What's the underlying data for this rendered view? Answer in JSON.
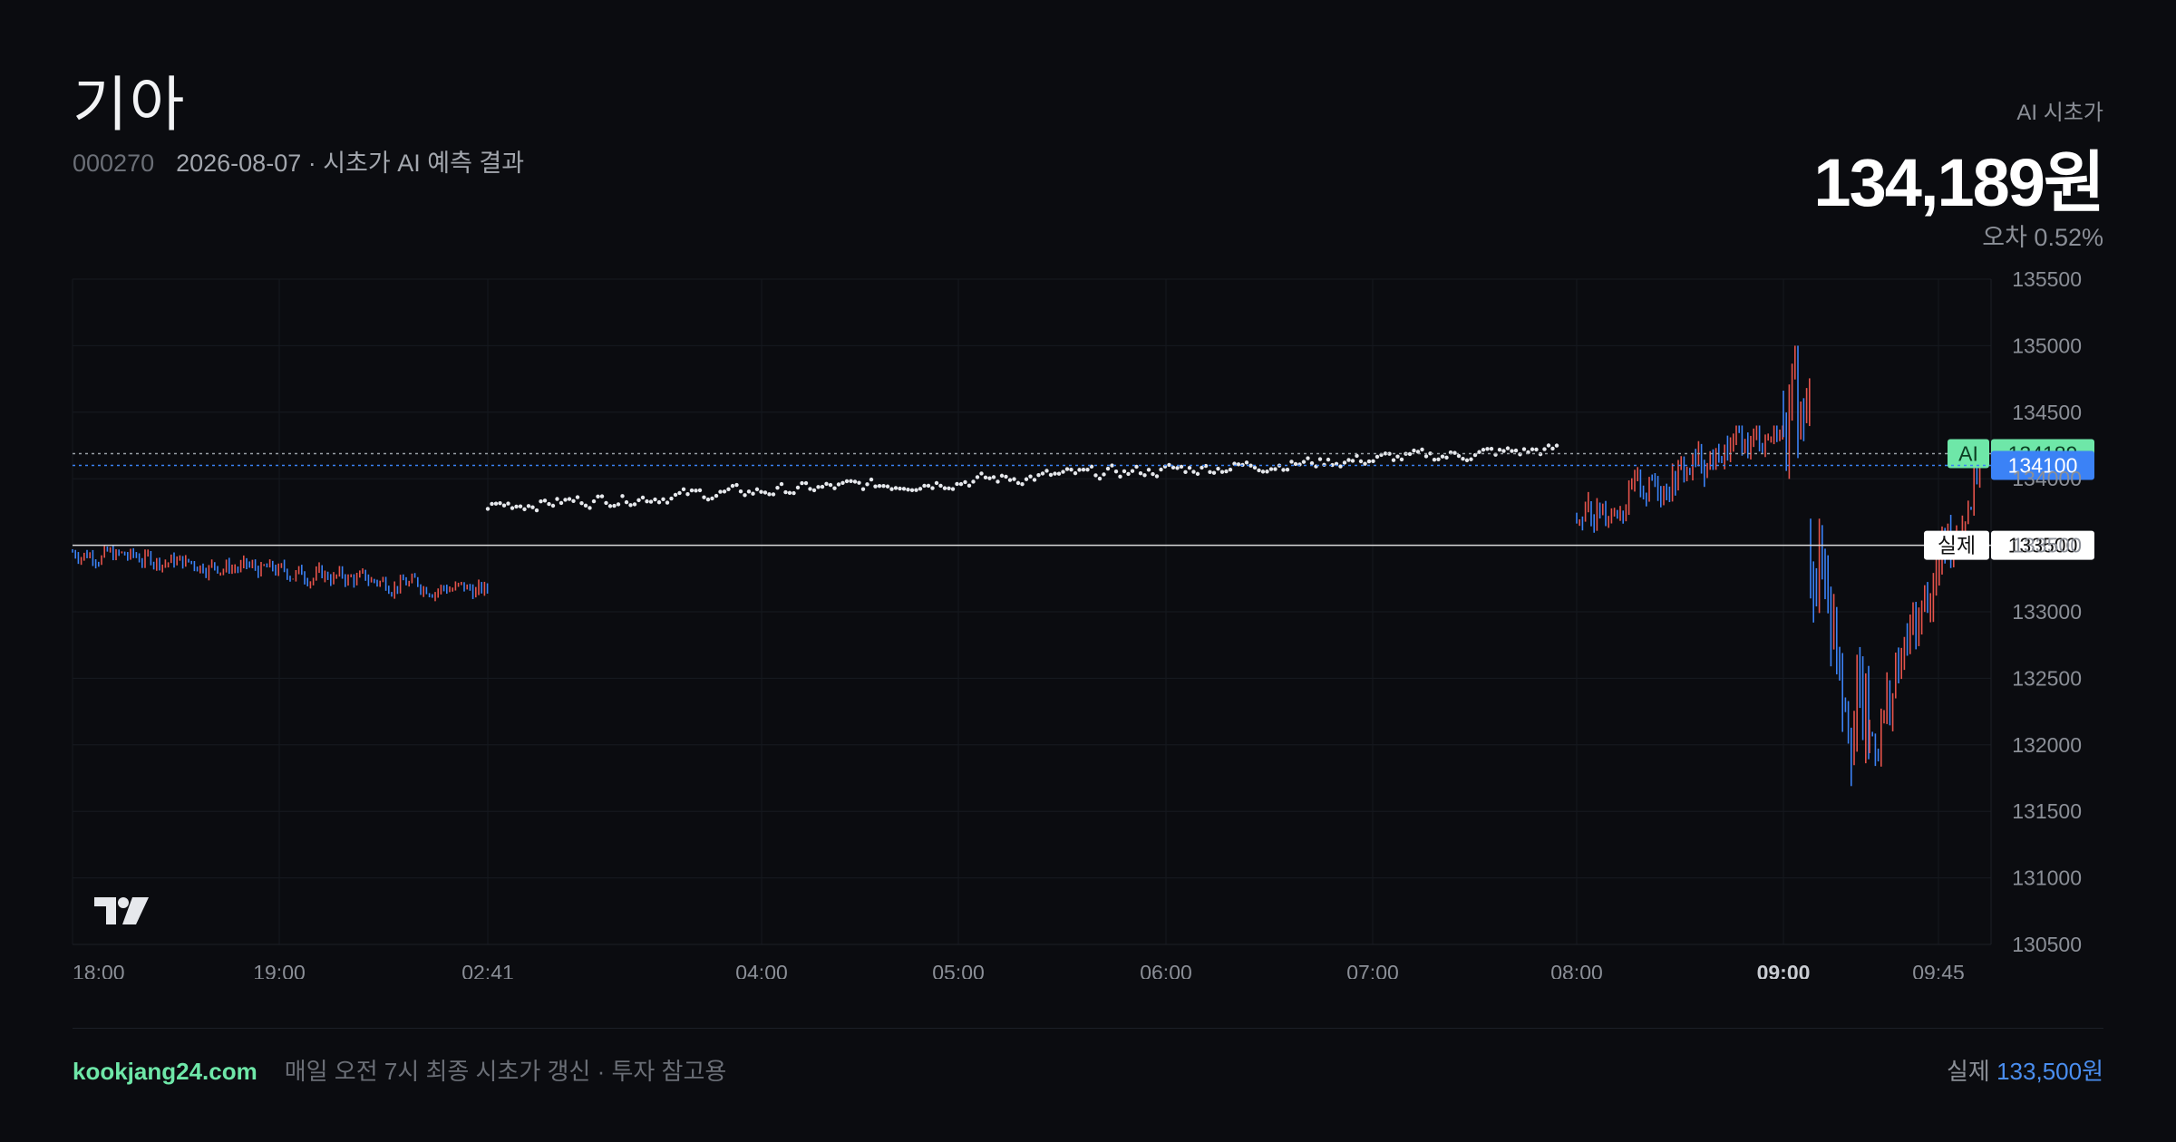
{
  "header": {
    "title": "기아",
    "code": "000270",
    "subtitle": "2026-08-07 · 시초가 AI 예측 결과",
    "ai_label": "AI 시초가",
    "ai_price": "134,189원",
    "error": "오차 0.52%"
  },
  "footer": {
    "site": "kookjang24.com",
    "note": "매일 오전 7시 최종 시초가 갱신 · 투자 참고용",
    "actual_label": "실제",
    "actual_value": "133,500원"
  },
  "colors": {
    "background": "#0b0c10",
    "up": "#e5534b",
    "down": "#3b82f6",
    "ai_line": "#6ee7a8",
    "current_line": "#3b82f6",
    "actual_line": "#d9d9d9"
  },
  "chart_data": {
    "type": "candlestick",
    "ylim": [
      130500,
      135500
    ],
    "y_ticks": [
      "135500",
      "135000",
      "134500",
      "134000",
      "133500",
      "133000",
      "132500",
      "132000",
      "131500",
      "131000",
      "130500"
    ],
    "x_ticks": [
      {
        "label": "18:00",
        "bold": false
      },
      {
        "label": "19:00",
        "bold": false
      },
      {
        "label": "02:41",
        "bold": false
      },
      {
        "label": "04:00",
        "bold": false
      },
      {
        "label": "05:00",
        "bold": false
      },
      {
        "label": "06:00",
        "bold": false
      },
      {
        "label": "07:00",
        "bold": false
      },
      {
        "label": "08:00",
        "bold": false
      },
      {
        "label": "09:00",
        "bold": true
      },
      {
        "label": "09:45",
        "bold": false
      }
    ],
    "markers": [
      {
        "name": "AI",
        "label": "AI",
        "value_label": "134189",
        "value": 134189,
        "style": "dotted-green"
      },
      {
        "name": "current",
        "label": "",
        "value_label": "134100",
        "value": 134100,
        "style": "dotted-blue"
      },
      {
        "name": "actual",
        "label": "실제",
        "value_label": "133500",
        "value": 133500,
        "style": "solid-white"
      }
    ],
    "logo": "tradingview-logo",
    "segments": [
      {
        "kind": "candles",
        "from_time": "18:00",
        "to_time": "02:41",
        "start": 133450,
        "end": 133150,
        "low": 133000,
        "high": 133500,
        "vol": 60
      },
      {
        "kind": "dots",
        "from_time": "02:41",
        "to_time": "07:55",
        "start": 133800,
        "end": 134220,
        "low": 133650,
        "high": 134250,
        "vol": 40
      },
      {
        "kind": "candles",
        "from_time": "08:00",
        "to_time": "09:00",
        "start": 133700,
        "end": 134400,
        "low": 133300,
        "high": 134400,
        "vol": 120
      },
      {
        "kind": "candles",
        "from_time": "09:00",
        "to_time": "09:08",
        "start": 134600,
        "end": 134300,
        "low": 133500,
        "high": 135000,
        "vol": 350
      },
      {
        "kind": "candles",
        "from_time": "09:08",
        "to_time": "09:25",
        "start": 133600,
        "end": 131900,
        "low": 131000,
        "high": 133700,
        "vol": 400
      },
      {
        "kind": "candles",
        "from_time": "09:25",
        "to_time": "09:55",
        "start": 132000,
        "end": 134200,
        "low": 131700,
        "high": 134500,
        "vol": 220
      }
    ]
  }
}
